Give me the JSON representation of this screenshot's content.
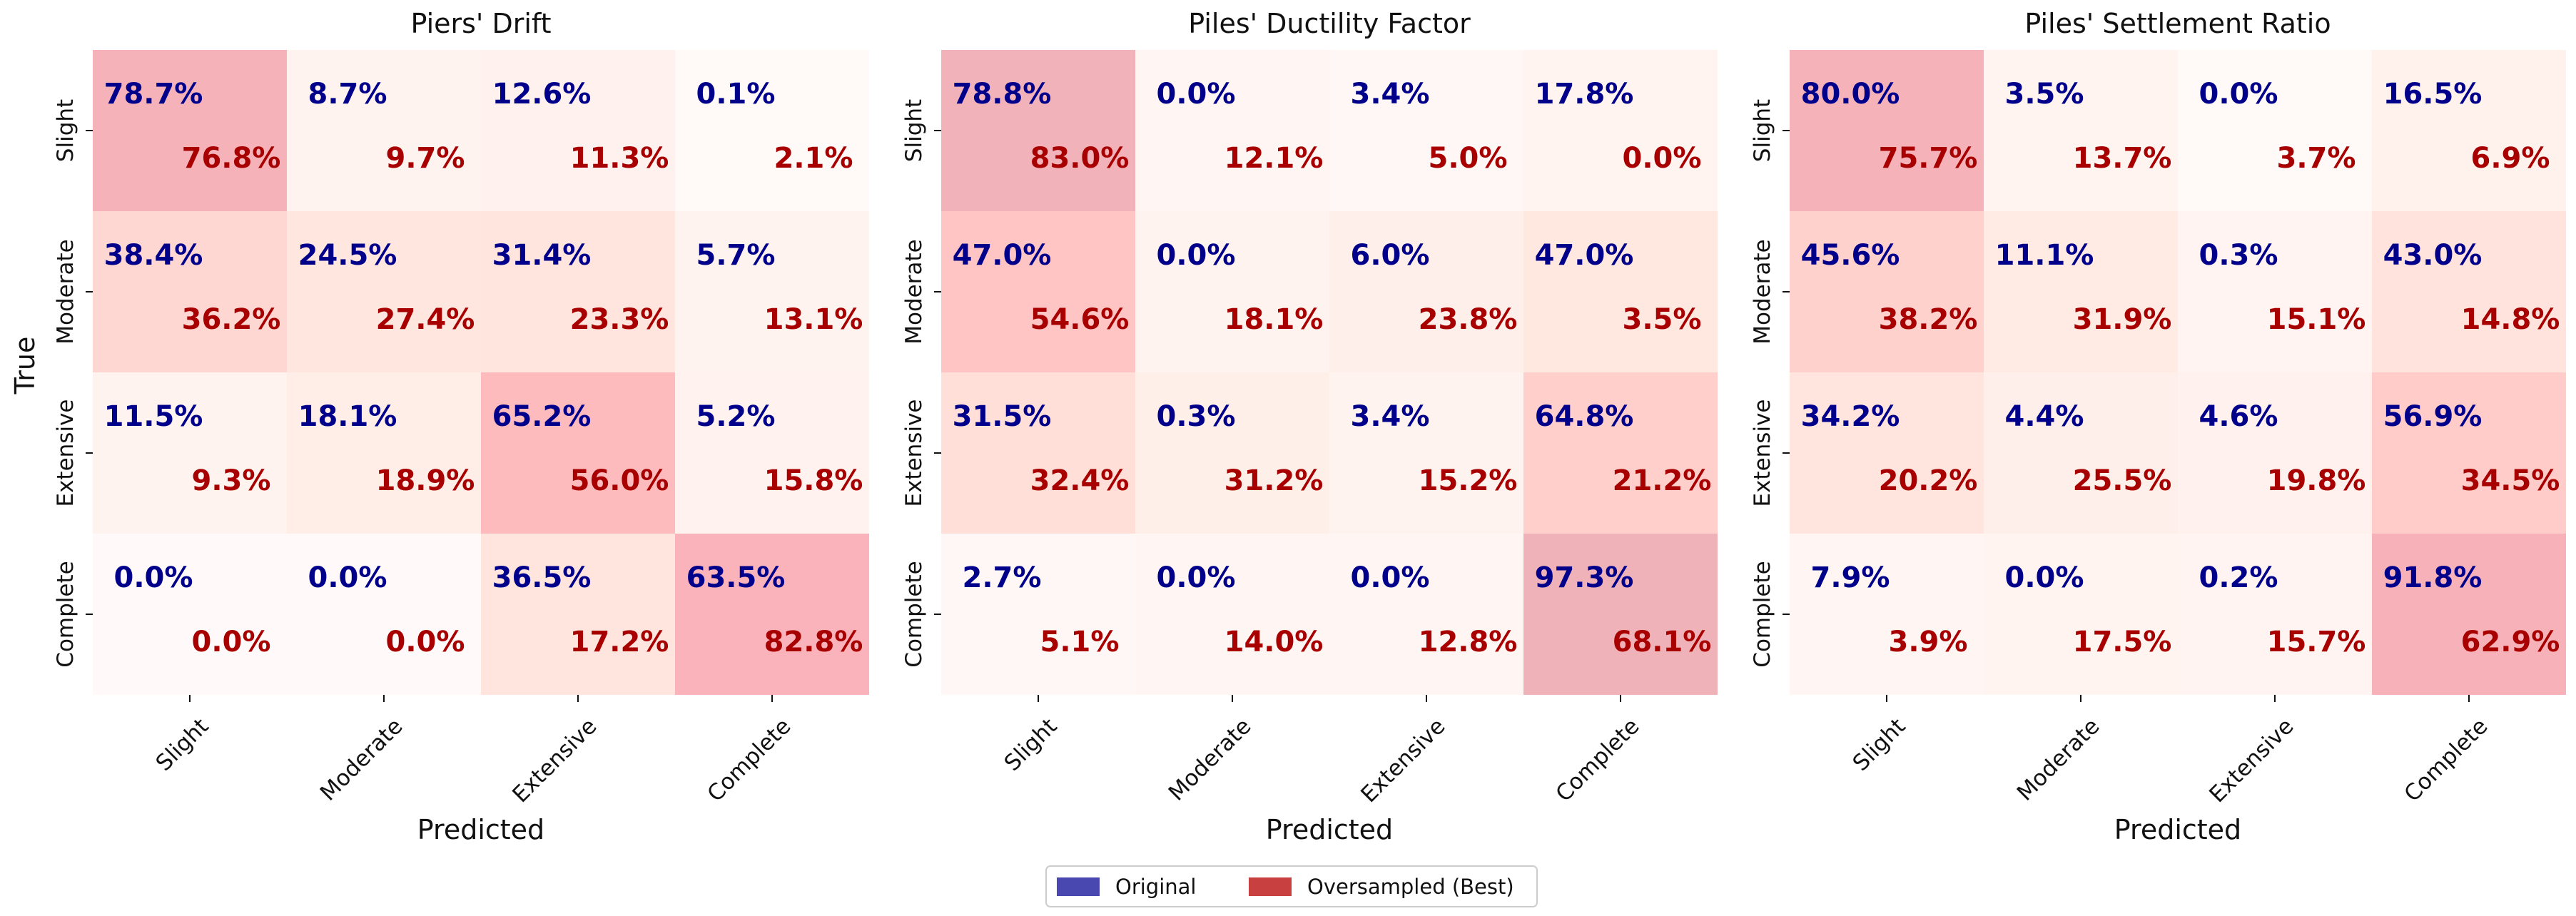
{
  "chart_data": {
    "type": "heatmap",
    "y_axis_label": "True",
    "x_axis_label": "Predicted",
    "categories": [
      "Slight",
      "Moderate",
      "Extensive",
      "Complete"
    ],
    "legend": {
      "placement": "bottom-center",
      "entries": [
        {
          "name": "Original",
          "color": "#4848b0"
        },
        {
          "name": "Oversampled (Best)",
          "color": "#c84040"
        }
      ]
    },
    "value_colors": {
      "original": "#00008b",
      "oversampled": "#a80000"
    },
    "panels": [
      {
        "title": "Piers' Drift",
        "original": [
          [
            "78.7%",
            "8.7%",
            "12.6%",
            "0.1%"
          ],
          [
            "38.4%",
            "24.5%",
            "31.4%",
            "5.7%"
          ],
          [
            "11.5%",
            "18.1%",
            "65.2%",
            "5.2%"
          ],
          [
            "0.0%",
            "0.0%",
            "36.5%",
            "63.5%"
          ]
        ],
        "oversampled": [
          [
            "76.8%",
            "9.7%",
            "11.3%",
            "2.1%"
          ],
          [
            "36.2%",
            "27.4%",
            "23.3%",
            "13.1%"
          ],
          [
            "9.3%",
            "18.9%",
            "56.0%",
            "15.8%"
          ],
          [
            "0.0%",
            "0.0%",
            "17.2%",
            "82.8%"
          ]
        ]
      },
      {
        "title": "Piles' Ductility Factor",
        "original": [
          [
            "78.8%",
            "0.0%",
            "3.4%",
            "17.8%"
          ],
          [
            "47.0%",
            "0.0%",
            "6.0%",
            "47.0%"
          ],
          [
            "31.5%",
            "0.3%",
            "3.4%",
            "64.8%"
          ],
          [
            "2.7%",
            "0.0%",
            "0.0%",
            "97.3%"
          ]
        ],
        "oversampled": [
          [
            "83.0%",
            "12.1%",
            "5.0%",
            "0.0%"
          ],
          [
            "54.6%",
            "18.1%",
            "23.8%",
            "3.5%"
          ],
          [
            "32.4%",
            "31.2%",
            "15.2%",
            "21.2%"
          ],
          [
            "5.1%",
            "14.0%",
            "12.8%",
            "68.1%"
          ]
        ]
      },
      {
        "title": "Piles' Settlement Ratio",
        "original": [
          [
            "80.0%",
            "3.5%",
            "0.0%",
            "16.5%"
          ],
          [
            "45.6%",
            "11.1%",
            "0.3%",
            "43.0%"
          ],
          [
            "34.2%",
            "4.4%",
            "4.6%",
            "56.9%"
          ],
          [
            "7.9%",
            "0.0%",
            "0.2%",
            "91.8%"
          ]
        ],
        "oversampled": [
          [
            "75.7%",
            "13.7%",
            "3.7%",
            "6.9%"
          ],
          [
            "38.2%",
            "31.9%",
            "15.1%",
            "14.8%"
          ],
          [
            "20.2%",
            "25.5%",
            "19.8%",
            "34.5%"
          ],
          [
            "3.9%",
            "17.5%",
            "15.7%",
            "62.9%"
          ]
        ]
      }
    ]
  }
}
